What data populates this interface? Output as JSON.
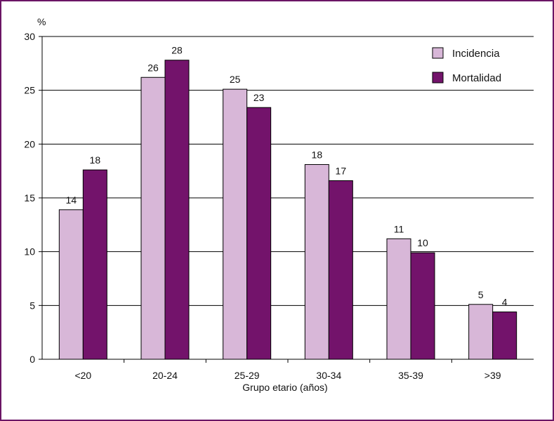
{
  "chart_data": {
    "type": "bar",
    "title": "",
    "ylabel": "%",
    "xlabel": "Grupo etario (años)",
    "ylim": [
      0,
      30
    ],
    "yticks": [
      0,
      5,
      10,
      15,
      20,
      25,
      30
    ],
    "grid": true,
    "legend_position": "top-right",
    "categories": [
      "<20",
      "20-24",
      "25-29",
      "30-34",
      "35-39",
      ">39"
    ],
    "series": [
      {
        "name": "Incidencia",
        "color": "#d8b7d8",
        "values": [
          13.9,
          26.2,
          25.1,
          18.1,
          11.2,
          5.1
        ],
        "labels": [
          "14",
          "26",
          "25",
          "18",
          "11",
          "5"
        ]
      },
      {
        "name": "Mortalidad",
        "color": "#73136b",
        "values": [
          17.6,
          27.8,
          23.4,
          16.6,
          9.9,
          4.4
        ],
        "labels": [
          "18",
          "28",
          "23",
          "17",
          "10",
          "4"
        ]
      }
    ]
  }
}
